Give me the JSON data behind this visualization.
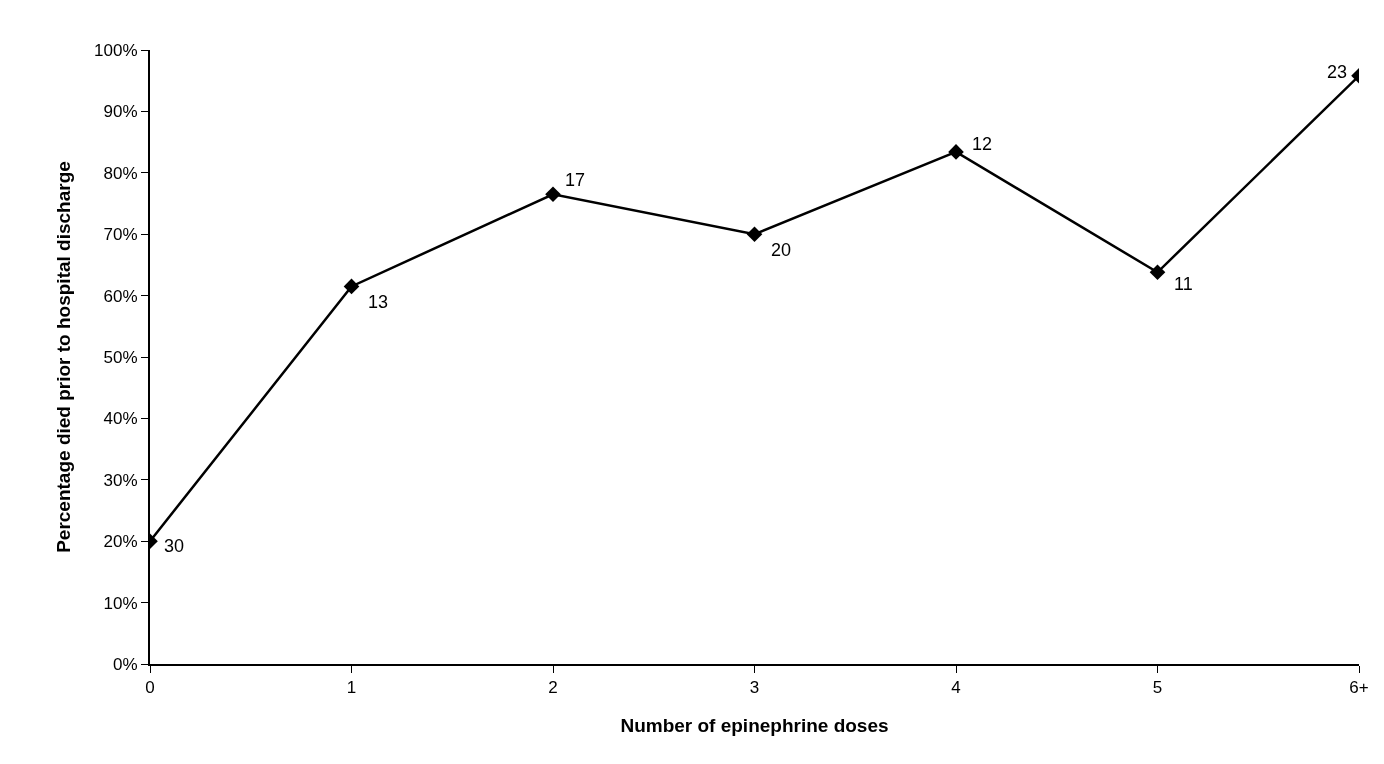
{
  "chart_data": {
    "type": "line",
    "xlabel": "Number of epinephrine doses",
    "ylabel": "Percentage died prior to hospital discharge",
    "categories": [
      "0",
      "1",
      "2",
      "3",
      "4",
      "5",
      "6+"
    ],
    "series": [
      {
        "color": "#000000",
        "values": [
          20,
          61.5,
          76.5,
          70,
          83.4,
          63.8,
          95.8
        ]
      }
    ],
    "annotations": [
      {
        "text": "30",
        "x": "0",
        "y": 20
      },
      {
        "text": "13",
        "x": "1",
        "y": 61.5
      },
      {
        "text": "17",
        "x": "2",
        "y": 76.5
      },
      {
        "text": "20",
        "x": "3",
        "y": 70
      },
      {
        "text": "12",
        "x": "4",
        "y": 83.4
      },
      {
        "text": "11",
        "x": "5",
        "y": 63.8
      },
      {
        "text": "23",
        "x": "6+",
        "y": 95.8
      }
    ],
    "ylim": [
      0,
      100
    ],
    "yticks": [
      {
        "value": 0,
        "label": "0%"
      },
      {
        "value": 10,
        "label": "10%"
      },
      {
        "value": 20,
        "label": "20%"
      },
      {
        "value": 30,
        "label": "30%"
      },
      {
        "value": 40,
        "label": "40%"
      },
      {
        "value": 50,
        "label": "50%"
      },
      {
        "value": 60,
        "label": "60%"
      },
      {
        "value": 70,
        "label": "70%"
      },
      {
        "value": 80,
        "label": "80%"
      },
      {
        "value": 90,
        "label": "90%"
      },
      {
        "value": 100,
        "label": "100%"
      }
    ],
    "grid": false,
    "marker": "diamond",
    "line_style": "solid"
  }
}
